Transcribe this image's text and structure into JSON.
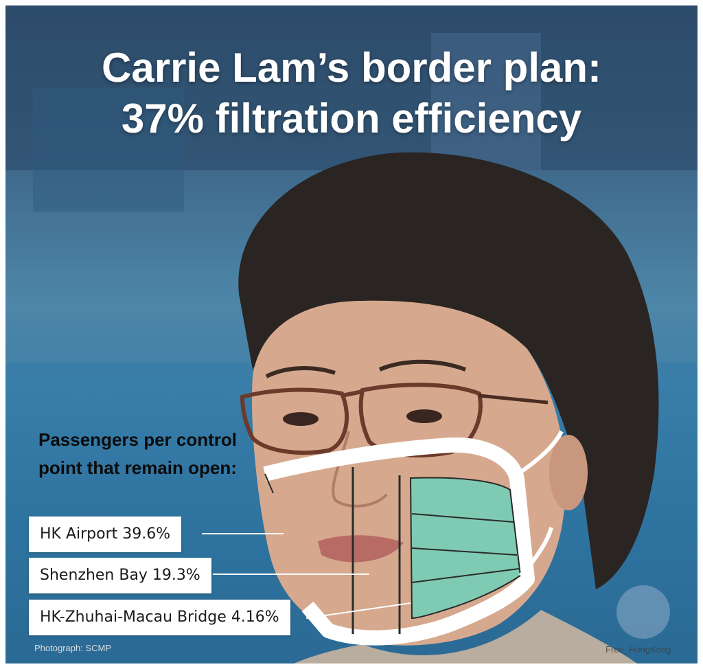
{
  "title": {
    "line1": "Carrie Lam’s border plan:",
    "line2": "37% filtration efficiency"
  },
  "subhead": "Passengers per control point that remain open:",
  "labels": [
    {
      "name": "HK Airport",
      "text": "HK Airport 39.6%",
      "value": 39.6
    },
    {
      "name": "Shenzhen Bay",
      "text": "Shenzhen Bay 19.3%",
      "value": 19.3
    },
    {
      "name": "HK-Zhuhai-Macau Bridge",
      "text": "HK-Zhuhai-Macau Bridge 4.16%",
      "value": 4.16
    }
  ],
  "credit": "Photograph: SCMP",
  "watermark": "Free_HongKong",
  "colors": {
    "mask_green": "#7fcab3",
    "mask_strap": "#ffffff",
    "title": "#ffffff",
    "background": "#3f7fa6"
  }
}
